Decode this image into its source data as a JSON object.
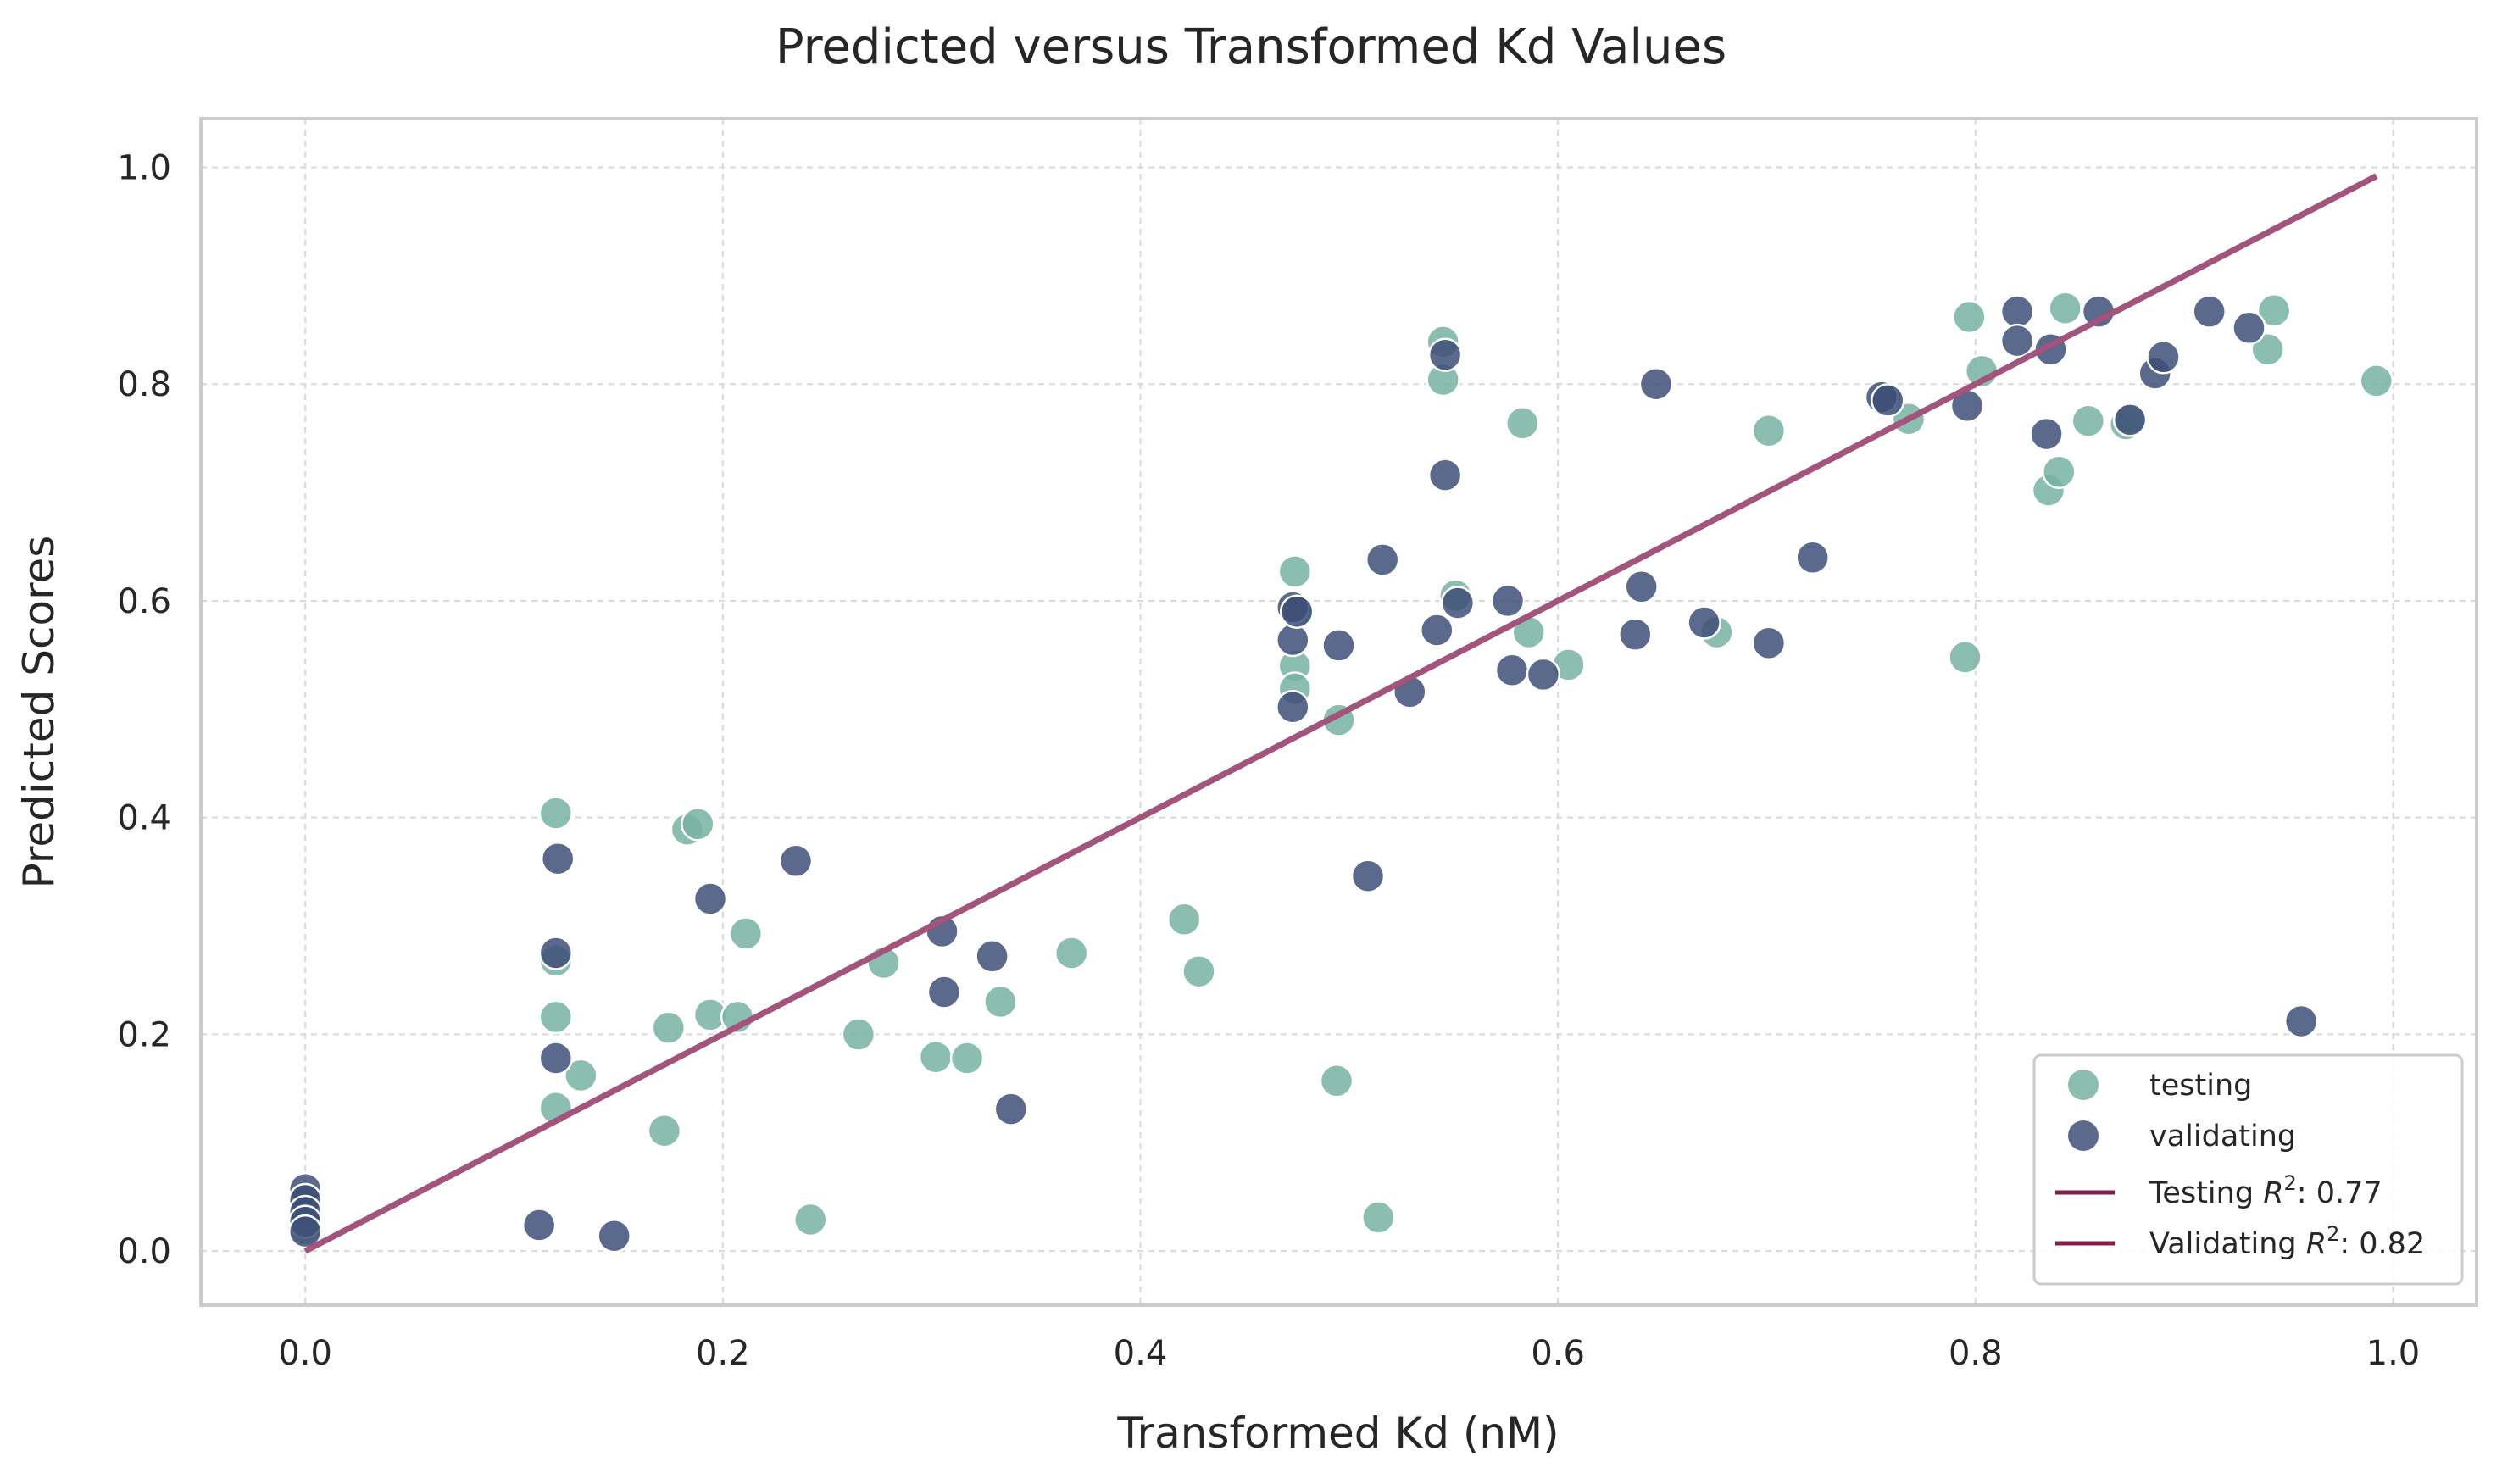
{
  "chart_data": {
    "type": "scatter",
    "title": "Predicted versus Transformed Kd Values",
    "xlabel": "Transformed Kd (nM)",
    "ylabel": "Predicted Scores",
    "xlim": [
      -0.05,
      1.04
    ],
    "ylim": [
      -0.05,
      1.045
    ],
    "xticks": [
      "0.0",
      "0.2",
      "0.4",
      "0.6",
      "0.8",
      "1.0"
    ],
    "yticks": [
      "0.0",
      "0.2",
      "0.4",
      "0.6",
      "0.8",
      "1.0"
    ],
    "grid": true,
    "legend_position": "bottom-right",
    "colors": {
      "testing": "#78b2a3",
      "validating": "#3e4f78",
      "fit_testing": "#7e1f4b",
      "fit_validating": "#a85e86"
    },
    "series": [
      {
        "name": "testing",
        "kind": "scatter",
        "legend_label": "testing",
        "points": [
          [
            0.0,
            0.02
          ],
          [
            0.0,
            0.03
          ],
          [
            0.0,
            0.045
          ],
          [
            0.12,
            0.404
          ],
          [
            0.12,
            0.268
          ],
          [
            0.12,
            0.216
          ],
          [
            0.12,
            0.132
          ],
          [
            0.132,
            0.162
          ],
          [
            0.172,
            0.111
          ],
          [
            0.174,
            0.206
          ],
          [
            0.183,
            0.389
          ],
          [
            0.188,
            0.394
          ],
          [
            0.194,
            0.218
          ],
          [
            0.207,
            0.216
          ],
          [
            0.211,
            0.293
          ],
          [
            0.242,
            0.029
          ],
          [
            0.265,
            0.2
          ],
          [
            0.277,
            0.266
          ],
          [
            0.302,
            0.179
          ],
          [
            0.317,
            0.178
          ],
          [
            0.333,
            0.23
          ],
          [
            0.367,
            0.275
          ],
          [
            0.421,
            0.306
          ],
          [
            0.428,
            0.258
          ],
          [
            0.474,
            0.627
          ],
          [
            0.474,
            0.54
          ],
          [
            0.474,
            0.519
          ],
          [
            0.476,
            0.59
          ],
          [
            0.494,
            0.157
          ],
          [
            0.495,
            0.49
          ],
          [
            0.514,
            0.031
          ],
          [
            0.545,
            0.839
          ],
          [
            0.545,
            0.804
          ],
          [
            0.551,
            0.605
          ],
          [
            0.583,
            0.764
          ],
          [
            0.586,
            0.571
          ],
          [
            0.605,
            0.541
          ],
          [
            0.676,
            0.571
          ],
          [
            0.701,
            0.757
          ],
          [
            0.757,
            0.787
          ],
          [
            0.768,
            0.768
          ],
          [
            0.795,
            0.548
          ],
          [
            0.797,
            0.862
          ],
          [
            0.803,
            0.812
          ],
          [
            0.835,
            0.702
          ],
          [
            0.84,
            0.719
          ],
          [
            0.843,
            0.87
          ],
          [
            0.854,
            0.766
          ],
          [
            0.872,
            0.763
          ],
          [
            0.874,
            0.768
          ],
          [
            0.94,
            0.832
          ],
          [
            0.943,
            0.868
          ],
          [
            0.992,
            0.803
          ]
        ]
      },
      {
        "name": "validating",
        "kind": "scatter",
        "legend_label": "validating",
        "points": [
          [
            0.0,
            0.057
          ],
          [
            0.0,
            0.047
          ],
          [
            0.0,
            0.036
          ],
          [
            0.0,
            0.027
          ],
          [
            0.0,
            0.018
          ],
          [
            0.112,
            0.024
          ],
          [
            0.121,
            0.362
          ],
          [
            0.12,
            0.275
          ],
          [
            0.12,
            0.178
          ],
          [
            0.148,
            0.014
          ],
          [
            0.194,
            0.325
          ],
          [
            0.235,
            0.36
          ],
          [
            0.305,
            0.295
          ],
          [
            0.306,
            0.239
          ],
          [
            0.329,
            0.272
          ],
          [
            0.338,
            0.131
          ],
          [
            0.473,
            0.594
          ],
          [
            0.473,
            0.564
          ],
          [
            0.473,
            0.502
          ],
          [
            0.475,
            0.59
          ],
          [
            0.495,
            0.559
          ],
          [
            0.509,
            0.346
          ],
          [
            0.516,
            0.638
          ],
          [
            0.529,
            0.516
          ],
          [
            0.542,
            0.573
          ],
          [
            0.546,
            0.827
          ],
          [
            0.546,
            0.716
          ],
          [
            0.552,
            0.598
          ],
          [
            0.576,
            0.6
          ],
          [
            0.578,
            0.536
          ],
          [
            0.593,
            0.532
          ],
          [
            0.637,
            0.569
          ],
          [
            0.64,
            0.613
          ],
          [
            0.647,
            0.8
          ],
          [
            0.67,
            0.58
          ],
          [
            0.701,
            0.561
          ],
          [
            0.722,
            0.64
          ],
          [
            0.755,
            0.788
          ],
          [
            0.758,
            0.785
          ],
          [
            0.796,
            0.78
          ],
          [
            0.82,
            0.867
          ],
          [
            0.82,
            0.84
          ],
          [
            0.834,
            0.754
          ],
          [
            0.836,
            0.832
          ],
          [
            0.859,
            0.867
          ],
          [
            0.874,
            0.767
          ],
          [
            0.886,
            0.81
          ],
          [
            0.89,
            0.825
          ],
          [
            0.912,
            0.867
          ],
          [
            0.931,
            0.852
          ],
          [
            0.956,
            0.212
          ]
        ]
      },
      {
        "name": "Testing fit",
        "kind": "line",
        "legend_label": "Testing R²: 0.77",
        "legend_prefix": "Testing ",
        "legend_suffix": ": 0.77",
        "points": [
          [
            0.0,
            0.0
          ],
          [
            0.992,
            0.992
          ]
        ]
      },
      {
        "name": "Validating fit",
        "kind": "line",
        "legend_label": "Validating R²: 0.82",
        "legend_prefix": "Validating ",
        "legend_suffix": ": 0.82",
        "points": [
          [
            0.0,
            0.0
          ],
          [
            0.992,
            0.992
          ]
        ]
      }
    ]
  }
}
